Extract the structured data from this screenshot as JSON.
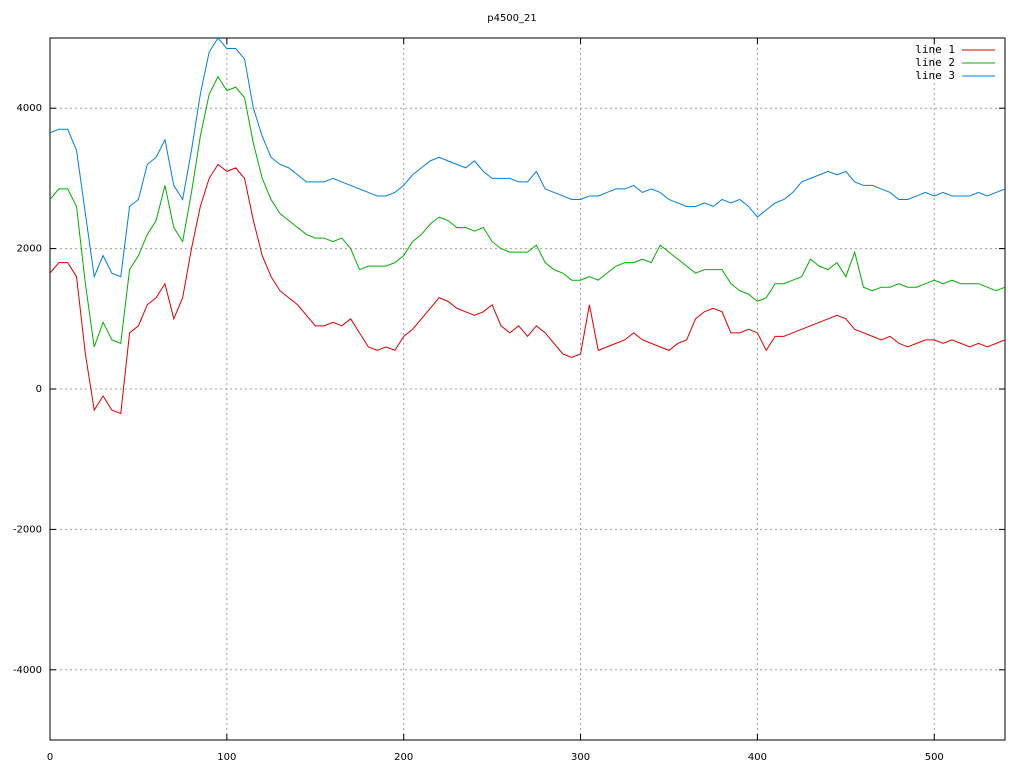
{
  "chart_data": {
    "type": "line",
    "title": "p4500_21",
    "x": [
      0,
      5,
      10,
      15,
      20,
      25,
      30,
      35,
      40,
      45,
      50,
      55,
      60,
      65,
      70,
      75,
      80,
      85,
      90,
      95,
      100,
      105,
      110,
      115,
      120,
      125,
      130,
      135,
      140,
      145,
      150,
      155,
      160,
      165,
      170,
      175,
      180,
      185,
      190,
      195,
      200,
      205,
      210,
      215,
      220,
      225,
      230,
      235,
      240,
      245,
      250,
      255,
      260,
      265,
      270,
      275,
      280,
      285,
      290,
      295,
      300,
      305,
      310,
      315,
      320,
      325,
      330,
      335,
      340,
      345,
      350,
      355,
      360,
      365,
      370,
      375,
      380,
      385,
      390,
      395,
      400,
      405,
      410,
      415,
      420,
      425,
      430,
      435,
      440,
      445,
      450,
      455,
      460,
      465,
      470,
      475,
      480,
      485,
      490,
      495,
      500,
      505,
      510,
      515,
      520,
      525,
      530,
      535,
      540
    ],
    "series": [
      {
        "name": "line 1",
        "color": "#e00000",
        "values": [
          1650,
          1800,
          1800,
          1600,
          500,
          -300,
          -100,
          -300,
          -350,
          800,
          900,
          1200,
          1300,
          1500,
          1000,
          1300,
          2000,
          2600,
          3000,
          3200,
          3100,
          3150,
          3000,
          2400,
          1900,
          1600,
          1400,
          1300,
          1200,
          1050,
          900,
          900,
          950,
          900,
          1000,
          800,
          600,
          550,
          600,
          550,
          750,
          850,
          1000,
          1150,
          1300,
          1250,
          1150,
          1100,
          1050,
          1100,
          1200,
          900,
          800,
          900,
          750,
          900,
          800,
          650,
          500,
          450,
          500,
          1200,
          550,
          600,
          650,
          700,
          800,
          700,
          650,
          600,
          550,
          650,
          700,
          1000,
          1100,
          1150,
          1100,
          800,
          800,
          850,
          800,
          550,
          750,
          750,
          800,
          850,
          900,
          950,
          1000,
          1050,
          1000,
          850,
          800,
          750,
          700,
          750,
          650,
          600,
          650,
          700,
          700,
          650,
          700,
          650,
          600,
          650,
          600,
          650,
          700
        ]
      },
      {
        "name": "line 2",
        "color": "#00b000",
        "values": [
          2700,
          2850,
          2850,
          2600,
          1500,
          600,
          950,
          700,
          650,
          1700,
          1900,
          2200,
          2400,
          2900,
          2300,
          2100,
          2800,
          3600,
          4200,
          4450,
          4250,
          4300,
          4150,
          3500,
          3000,
          2700,
          2500,
          2400,
          2300,
          2200,
          2150,
          2150,
          2100,
          2150,
          2000,
          1700,
          1750,
          1750,
          1750,
          1800,
          1900,
          2100,
          2200,
          2350,
          2450,
          2400,
          2300,
          2300,
          2250,
          2300,
          2100,
          2000,
          1950,
          1950,
          1950,
          2050,
          1800,
          1700,
          1650,
          1550,
          1550,
          1600,
          1550,
          1650,
          1750,
          1800,
          1800,
          1850,
          1800,
          2050,
          1950,
          1850,
          1750,
          1650,
          1700,
          1700,
          1700,
          1500,
          1400,
          1350,
          1250,
          1300,
          1500,
          1500,
          1550,
          1600,
          1850,
          1750,
          1700,
          1800,
          1600,
          1950,
          1450,
          1400,
          1450,
          1450,
          1500,
          1450,
          1450,
          1500,
          1550,
          1500,
          1550,
          1500,
          1500,
          1500,
          1450,
          1400,
          1450
        ]
      },
      {
        "name": "line 3",
        "color": "#0080e0",
        "values": [
          3650,
          3700,
          3700,
          3400,
          2500,
          1600,
          1900,
          1650,
          1600,
          2600,
          2700,
          3200,
          3300,
          3550,
          2900,
          2700,
          3400,
          4200,
          4800,
          5000,
          4850,
          4850,
          4700,
          4000,
          3600,
          3300,
          3200,
          3150,
          3050,
          2950,
          2950,
          2950,
          3000,
          2950,
          2900,
          2850,
          2800,
          2750,
          2750,
          2800,
          2900,
          3050,
          3150,
          3250,
          3300,
          3250,
          3200,
          3150,
          3250,
          3100,
          3000,
          3000,
          3000,
          2950,
          2950,
          3100,
          2850,
          2800,
          2750,
          2700,
          2700,
          2750,
          2750,
          2800,
          2850,
          2850,
          2900,
          2800,
          2850,
          2800,
          2700,
          2650,
          2600,
          2600,
          2650,
          2600,
          2700,
          2650,
          2700,
          2600,
          2450,
          2550,
          2650,
          2700,
          2800,
          2950,
          3000,
          3050,
          3100,
          3050,
          3100,
          2950,
          2900,
          2900,
          2850,
          2800,
          2700,
          2700,
          2750,
          2800,
          2750,
          2800,
          2750,
          2750,
          2750,
          2800,
          2750,
          2800,
          2850
        ]
      }
    ],
    "xlim": [
      0,
      540
    ],
    "xticks": [
      0,
      100,
      200,
      300,
      400,
      500
    ],
    "ylim": [
      -5000,
      5000
    ],
    "yticks": [
      -4000,
      -2000,
      0,
      2000,
      4000
    ],
    "grid": true,
    "legend": "top-right"
  }
}
